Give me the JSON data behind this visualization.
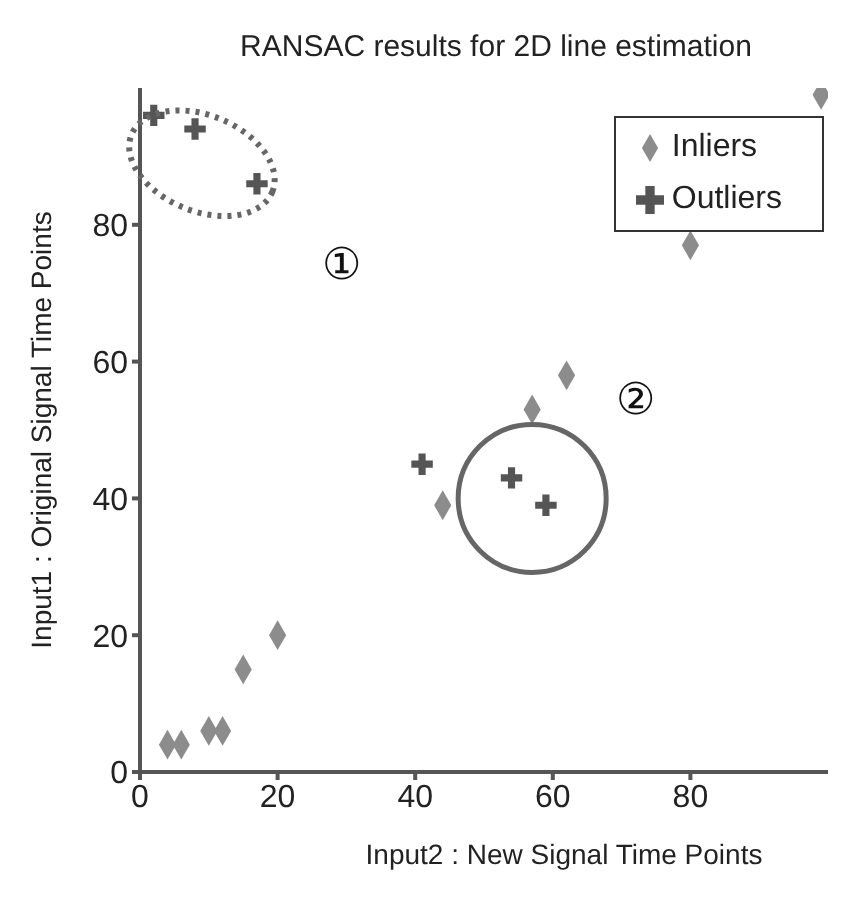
{
  "chart_data": {
    "type": "scatter",
    "title": "RANSAC results for 2D line estimation",
    "xlabel": "Input2 : New Signal Time Points",
    "ylabel": "Input1 : Original Signal Time Points",
    "xlim": [
      0,
      100
    ],
    "ylim": [
      0,
      100
    ],
    "xticks": [
      0,
      20,
      40,
      60,
      80
    ],
    "yticks": [
      0,
      20,
      40,
      60,
      80
    ],
    "grid": false,
    "legend": "top right",
    "series": [
      {
        "name": "Inliers",
        "color": "#8c8c8c",
        "marker": "diamond",
        "x": [
          4,
          6,
          10,
          12,
          15,
          20,
          44,
          57,
          62,
          80,
          99
        ],
        "values": [
          4,
          4,
          6,
          6,
          15,
          20,
          39,
          53,
          58,
          77,
          99
        ]
      },
      {
        "name": "Outliers",
        "color": "#555555",
        "marker": "cross",
        "x": [
          2,
          8,
          17,
          41,
          54,
          59
        ],
        "values": [
          96,
          94,
          86,
          45,
          43,
          39
        ]
      }
    ],
    "annotations": [
      "①",
      "②"
    ]
  }
}
